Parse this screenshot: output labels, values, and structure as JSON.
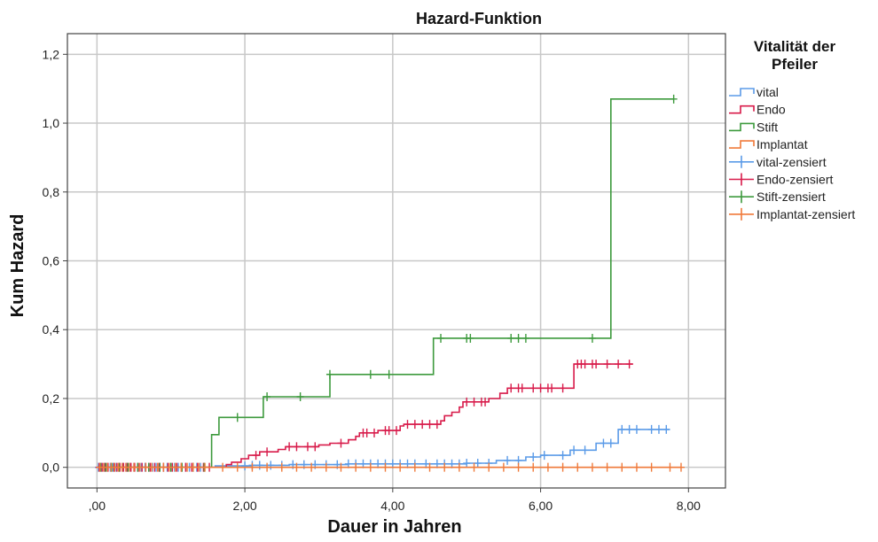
{
  "chart_data": {
    "type": "line",
    "title": "Hazard-Funktion",
    "xlabel": "Dauer in Jahren",
    "ylabel": "Kum Hazard",
    "xlim": [
      -0.4,
      8.5
    ],
    "ylim": [
      -0.06,
      1.26
    ],
    "x_ticks": [
      0,
      2,
      4,
      6,
      8
    ],
    "x_tick_labels": [
      ",00",
      "2,00",
      "4,00",
      "6,00",
      "8,00"
    ],
    "y_ticks": [
      0,
      0.2,
      0.4,
      0.6,
      0.8,
      1.0,
      1.2
    ],
    "y_tick_labels": [
      "0,0",
      "0,2",
      "0,4",
      "0,6",
      "0,8",
      "1,0",
      "1,2"
    ],
    "grid": true,
    "legend": {
      "title_line1": "Vitalität der",
      "title_line2": "Pfeiler",
      "placement": "right"
    },
    "series": [
      {
        "name": "vital",
        "censored_name": "vital-zensiert",
        "color": "#5b9be8",
        "steps": [
          [
            0,
            0
          ],
          [
            1.6,
            0.004
          ],
          [
            2.1,
            0.006
          ],
          [
            2.6,
            0.008
          ],
          [
            3.4,
            0.01
          ],
          [
            5.0,
            0.012
          ],
          [
            5.4,
            0.02
          ],
          [
            5.8,
            0.03
          ],
          [
            6.0,
            0.035
          ],
          [
            6.4,
            0.05
          ],
          [
            6.75,
            0.07
          ],
          [
            7.05,
            0.11
          ],
          [
            7.75,
            0.11
          ]
        ],
        "censored": [
          0.02,
          0.06,
          0.1,
          0.14,
          0.18,
          0.22,
          0.26,
          0.3,
          0.35,
          0.4,
          0.45,
          0.5,
          0.55,
          0.6,
          0.65,
          0.7,
          0.75,
          0.8,
          0.85,
          0.9,
          0.95,
          1.0,
          1.05,
          1.1,
          1.15,
          1.2,
          1.25,
          1.3,
          1.35,
          1.4,
          1.45,
          2.0,
          2.1,
          2.2,
          2.35,
          2.5,
          2.65,
          2.8,
          2.95,
          3.1,
          3.25,
          3.4,
          3.5,
          3.6,
          3.7,
          3.8,
          3.9,
          4.0,
          4.1,
          4.2,
          4.3,
          4.45,
          4.6,
          4.7,
          4.8,
          4.9,
          5.0,
          5.15,
          5.3,
          5.55,
          5.7,
          5.9,
          6.05,
          6.3,
          6.45,
          6.6,
          6.85,
          6.95,
          7.1,
          7.2,
          7.3,
          7.5,
          7.6,
          7.7
        ]
      },
      {
        "name": "Endo",
        "censored_name": "Endo-zensiert",
        "color": "#d81b4a",
        "steps": [
          [
            0,
            0
          ],
          [
            1.75,
            0.008
          ],
          [
            1.82,
            0.015
          ],
          [
            1.95,
            0.025
          ],
          [
            2.05,
            0.035
          ],
          [
            2.2,
            0.045
          ],
          [
            2.45,
            0.052
          ],
          [
            2.55,
            0.06
          ],
          [
            3.0,
            0.065
          ],
          [
            3.15,
            0.07
          ],
          [
            3.4,
            0.08
          ],
          [
            3.5,
            0.09
          ],
          [
            3.55,
            0.1
          ],
          [
            3.8,
            0.107
          ],
          [
            4.1,
            0.12
          ],
          [
            4.15,
            0.125
          ],
          [
            4.65,
            0.135
          ],
          [
            4.7,
            0.15
          ],
          [
            4.8,
            0.16
          ],
          [
            4.9,
            0.175
          ],
          [
            4.95,
            0.19
          ],
          [
            5.3,
            0.2
          ],
          [
            5.45,
            0.215
          ],
          [
            5.55,
            0.23
          ],
          [
            6.45,
            0.3
          ],
          [
            7.25,
            0.3
          ]
        ],
        "censored": [
          0.03,
          0.07,
          0.11,
          0.15,
          0.19,
          0.23,
          0.27,
          0.31,
          0.36,
          0.41,
          0.46,
          0.51,
          0.56,
          0.61,
          0.66,
          0.72,
          0.78,
          0.84,
          0.9,
          0.96,
          1.02,
          1.08,
          1.14,
          1.2,
          1.28,
          1.36,
          1.44,
          1.52,
          2.15,
          2.3,
          2.6,
          2.7,
          2.85,
          2.95,
          3.3,
          3.6,
          3.65,
          3.75,
          3.9,
          3.95,
          4.05,
          4.2,
          4.3,
          4.4,
          4.5,
          4.6,
          5.0,
          5.1,
          5.2,
          5.25,
          5.6,
          5.7,
          5.75,
          5.9,
          6.0,
          6.1,
          6.15,
          6.3,
          6.5,
          6.55,
          6.6,
          6.7,
          6.75,
          6.9,
          7.05,
          7.2
        ]
      },
      {
        "name": "Stift",
        "censored_name": "Stift-zensiert",
        "color": "#3d9a3d",
        "steps": [
          [
            0,
            0
          ],
          [
            1.55,
            0.095
          ],
          [
            1.65,
            0.145
          ],
          [
            2.25,
            0.205
          ],
          [
            3.15,
            0.27
          ],
          [
            4.55,
            0.375
          ],
          [
            6.95,
            1.07
          ],
          [
            7.8,
            1.07
          ]
        ],
        "censored": [
          0.05,
          0.12,
          0.2,
          0.3,
          0.42,
          0.55,
          0.7,
          0.85,
          1.0,
          1.15,
          1.3,
          1.45,
          1.9,
          2.3,
          2.75,
          3.15,
          3.7,
          3.95,
          4.65,
          5.0,
          5.05,
          5.6,
          5.7,
          5.8,
          6.7,
          7.8
        ]
      },
      {
        "name": "Implantat",
        "censored_name": "Implantat-zensiert",
        "color": "#f07a3a",
        "steps": [
          [
            0,
            0
          ],
          [
            7.9,
            0
          ]
        ],
        "censored": [
          0.04,
          0.09,
          0.14,
          0.19,
          0.24,
          0.29,
          0.34,
          0.39,
          0.44,
          0.5,
          0.58,
          0.66,
          0.74,
          0.82,
          0.9,
          0.98,
          1.06,
          1.14,
          1.22,
          1.3,
          1.38,
          1.46,
          1.7,
          1.9,
          2.1,
          2.3,
          2.5,
          2.7,
          2.9,
          3.1,
          3.3,
          3.5,
          3.7,
          3.9,
          4.1,
          4.3,
          4.5,
          4.7,
          4.9,
          5.1,
          5.3,
          5.5,
          5.7,
          5.9,
          6.1,
          6.3,
          6.5,
          6.7,
          6.9,
          7.1,
          7.3,
          7.5,
          7.75,
          7.9
        ]
      }
    ]
  }
}
